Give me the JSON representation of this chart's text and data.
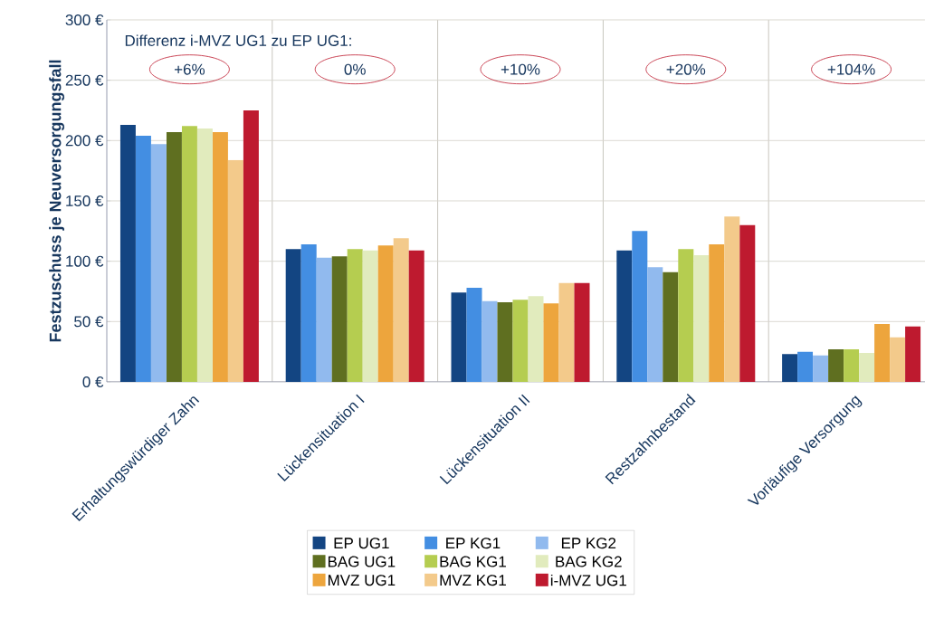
{
  "chart_data": {
    "type": "bar",
    "ylabel": "Festzuschuss je Neuversorgungsfall",
    "categories": [
      "Erhaltungswürdiger Zahn",
      "Lückensituation I",
      "Lückensituation II",
      "Restzahnbestand",
      "Vorläufige Versorgung"
    ],
    "series": [
      {
        "name": "EP UG1",
        "color": "#134582",
        "values": [
          213,
          110,
          74,
          109,
          23
        ]
      },
      {
        "name": "EP KG1",
        "color": "#438ee2",
        "values": [
          204,
          114,
          78,
          125,
          25
        ]
      },
      {
        "name": "EP KG2",
        "color": "#91baee",
        "values": [
          197,
          103,
          67,
          95,
          22
        ]
      },
      {
        "name": "BAG UG1",
        "color": "#5f6f20",
        "values": [
          207,
          104,
          66,
          91,
          27
        ]
      },
      {
        "name": "BAG KG1",
        "color": "#b5cd50",
        "values": [
          212,
          110,
          68,
          110,
          27
        ]
      },
      {
        "name": "BAG KG2",
        "color": "#e1ebbd",
        "values": [
          210,
          109,
          71,
          105,
          24
        ]
      },
      {
        "name": "MVZ UG1",
        "color": "#eda53d",
        "values": [
          207,
          113,
          65,
          114,
          48
        ]
      },
      {
        "name": "MVZ KG1",
        "color": "#f3ca8b",
        "values": [
          184,
          119,
          82,
          137,
          37
        ]
      },
      {
        "name": "i-MVZ UG1",
        "color": "#be1a2f",
        "values": [
          225,
          109,
          82,
          130,
          46
        ]
      }
    ],
    "ylim": [
      0,
      300
    ],
    "yticks": [
      {
        "value": 0,
        "label": "0 €"
      },
      {
        "value": 50,
        "label": "50 €"
      },
      {
        "value": 100,
        "label": "100 €"
      },
      {
        "value": 150,
        "label": "150 €"
      },
      {
        "value": 200,
        "label": "200 €"
      },
      {
        "value": 250,
        "label": "250 €"
      },
      {
        "value": 300,
        "label": "300 €"
      }
    ],
    "grid": "y",
    "legend": "bottom",
    "annotations": [
      "Differenz i-MVZ UG1 zu EP UG1:",
      "+6%",
      "0%",
      "+10%",
      "+20%",
      "+104%"
    ]
  }
}
